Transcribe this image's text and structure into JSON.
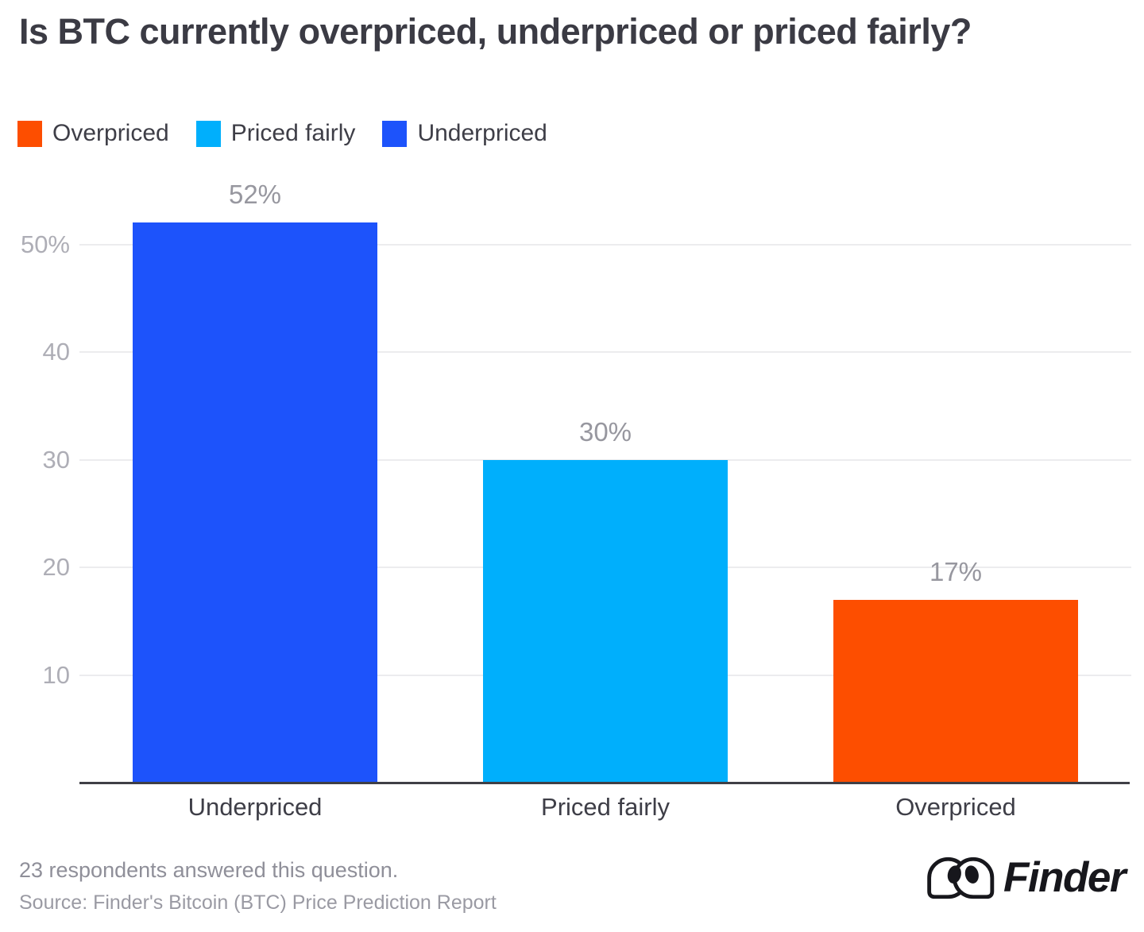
{
  "title": "Is BTC currently overpriced, underpriced or priced fairly?",
  "legend": [
    {
      "label": "Overpriced",
      "color": "#FD4E00"
    },
    {
      "label": "Priced fairly",
      "color": "#00AFFC"
    },
    {
      "label": "Underpriced",
      "color": "#1D53FB"
    }
  ],
  "chart_data": {
    "type": "bar",
    "title": "Is BTC currently overpriced, underpriced or priced fairly?",
    "categories": [
      "Underpriced",
      "Priced fairly",
      "Overpriced"
    ],
    "values": [
      52,
      30,
      17
    ],
    "value_labels": [
      "52%",
      "30%",
      "17%"
    ],
    "bar_colors": [
      "#1D53FB",
      "#00AFFC",
      "#FD4E00"
    ],
    "xlabel": "",
    "ylabel": "",
    "ylim": [
      0,
      52
    ],
    "y_ticks": [
      {
        "label": "50%",
        "value": 50
      },
      {
        "label": "40",
        "value": 40
      },
      {
        "label": "30",
        "value": 30
      },
      {
        "label": "20",
        "value": 20
      },
      {
        "label": "10",
        "value": 10
      }
    ],
    "grid": "horizontal",
    "legend_position": "top-left"
  },
  "footer": {
    "note": "23 respondents answered this question.",
    "source": "Source: Finder's Bitcoin (BTC) Price Prediction Report"
  },
  "logo": {
    "text": "Finder"
  }
}
